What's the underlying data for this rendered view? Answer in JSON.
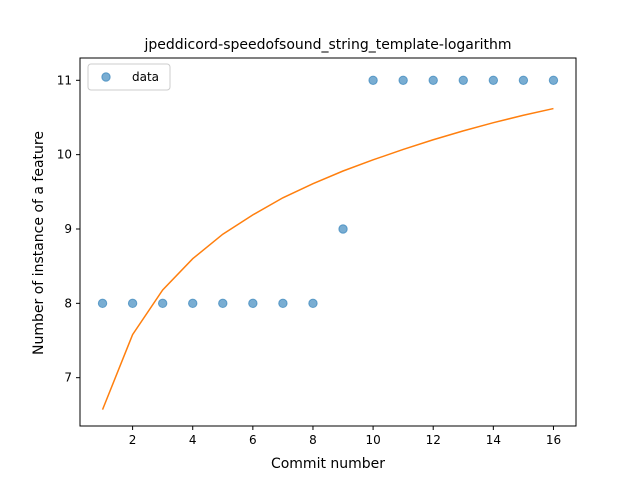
{
  "chart_data": {
    "type": "scatter",
    "title": "jpeddicord-speedofsound_string_template-logarithm",
    "xlabel": "Commit number",
    "ylabel": "Number of instance of a feature",
    "xlim": [
      0.25,
      16.75
    ],
    "ylim": [
      6.35,
      11.3
    ],
    "x_ticks": [
      2,
      4,
      6,
      8,
      10,
      12,
      14,
      16
    ],
    "y_ticks": [
      7,
      8,
      9,
      10,
      11
    ],
    "legend_placement": "top-left",
    "grid": false,
    "series": [
      {
        "name": "data",
        "kind": "scatter",
        "color": "#1f77b4",
        "x": [
          1,
          2,
          3,
          4,
          5,
          6,
          7,
          8,
          9,
          10,
          11,
          12,
          13,
          14,
          15,
          16
        ],
        "y": [
          8,
          8,
          8,
          8,
          8,
          8,
          8,
          8,
          9,
          11,
          11,
          11,
          11,
          11,
          11,
          11
        ]
      },
      {
        "kind": "line",
        "color": "#ff7f0e",
        "x": [
          1,
          2,
          3,
          4,
          5,
          6,
          7,
          8,
          9,
          10,
          11,
          12,
          13,
          14,
          15,
          16
        ],
        "y": [
          6.57,
          7.58,
          8.18,
          8.6,
          8.93,
          9.19,
          9.42,
          9.61,
          9.78,
          9.93,
          10.07,
          10.2,
          10.32,
          10.43,
          10.53,
          10.62
        ]
      }
    ]
  }
}
